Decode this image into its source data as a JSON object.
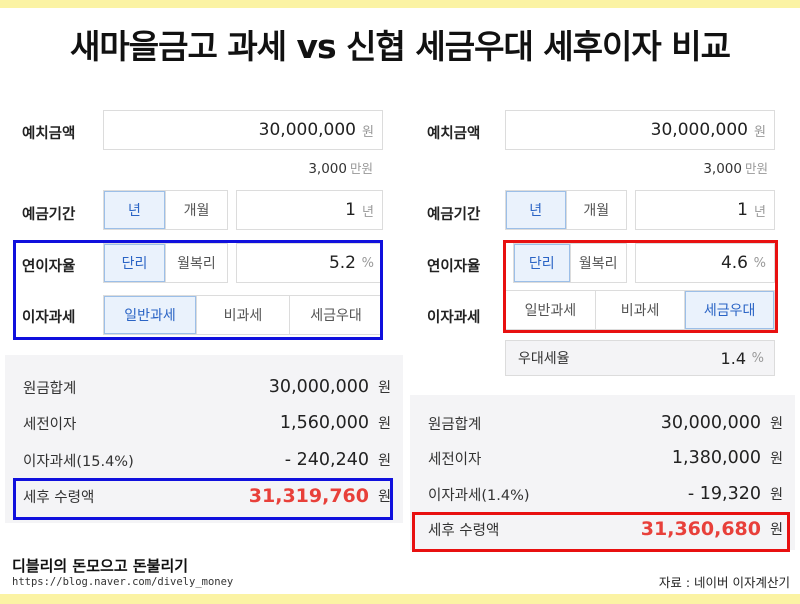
{
  "title": "새마을금고 과세 vs 신협 세금우대 세후이자 비교",
  "left": {
    "deposit_label": "예치금액",
    "deposit_value": "30,000,000",
    "deposit_unit": "원",
    "deposit_sub_value": "3,000",
    "deposit_sub_unit": "만원",
    "period_label": "예금기간",
    "period_options": [
      "년",
      "개월"
    ],
    "period_selected": "년",
    "period_value": "1",
    "period_unit": "년",
    "rate_label": "연이자율",
    "rate_options": [
      "단리",
      "월복리"
    ],
    "rate_selected": "단리",
    "rate_value": "5.2",
    "rate_unit": "%",
    "tax_label": "이자과세",
    "tax_options": [
      "일반과세",
      "비과세",
      "세금우대"
    ],
    "tax_selected": "일반과세",
    "summary": [
      {
        "key": "원금합계",
        "value": "30,000,000",
        "unit": "원"
      },
      {
        "key": "세전이자",
        "value": "1,560,000",
        "unit": "원"
      },
      {
        "key": "이자과세(15.4%)",
        "value": "- 240,240",
        "unit": "원"
      }
    ],
    "net_label": "세후 수령액",
    "net_value": "31,319,760",
    "net_unit": "원"
  },
  "right": {
    "deposit_label": "예치금액",
    "deposit_value": "30,000,000",
    "deposit_unit": "원",
    "deposit_sub_value": "3,000",
    "deposit_sub_unit": "만원",
    "period_label": "예금기간",
    "period_options": [
      "년",
      "개월"
    ],
    "period_selected": "년",
    "period_value": "1",
    "period_unit": "년",
    "rate_label": "연이자율",
    "rate_options": [
      "단리",
      "월복리"
    ],
    "rate_selected": "단리",
    "rate_value": "4.6",
    "rate_unit": "%",
    "tax_label": "이자과세",
    "tax_options": [
      "일반과세",
      "비과세",
      "세금우대"
    ],
    "tax_selected": "세금우대",
    "pref_label": "우대세율",
    "pref_value": "1.4",
    "pref_unit": "%",
    "summary": [
      {
        "key": "원금합계",
        "value": "30,000,000",
        "unit": "원"
      },
      {
        "key": "세전이자",
        "value": "1,380,000",
        "unit": "원"
      },
      {
        "key": "이자과세(1.4%)",
        "value": "- 19,320",
        "unit": "원"
      }
    ],
    "net_label": "세후 수령액",
    "net_value": "31,360,680",
    "net_unit": "원"
  },
  "footer": {
    "brand": "디블리의 돈모으고 돈불리기",
    "url": "https://blog.naver.com/dively_money",
    "source": "자료 : 네이버 이자계산기"
  },
  "colors": {
    "left_highlight": "#1010dd",
    "right_highlight": "#e81010",
    "net_value": "#e8403a",
    "selected_option": "#2a64c5"
  }
}
